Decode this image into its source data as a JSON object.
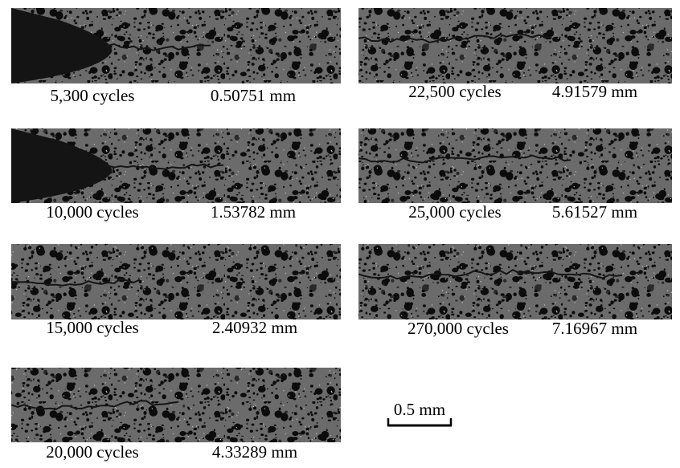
{
  "panels": [
    {
      "cycles": "5,300 cycles",
      "length": "0.50751 mm"
    },
    {
      "cycles": "10,000 cycles",
      "length": "1.53782 mm"
    },
    {
      "cycles": "15,000 cycles",
      "length": "2.40932 mm"
    },
    {
      "cycles": "20,000 cycles",
      "length": "4.33289 mm"
    },
    {
      "cycles": "22,500 cycles",
      "length": "4.91579 mm"
    },
    {
      "cycles": "25,000 cycles",
      "length": "5.61527 mm"
    },
    {
      "cycles": "270,000 cycles",
      "length": "7.16967 mm"
    }
  ],
  "scale_bar": "0.5 mm"
}
